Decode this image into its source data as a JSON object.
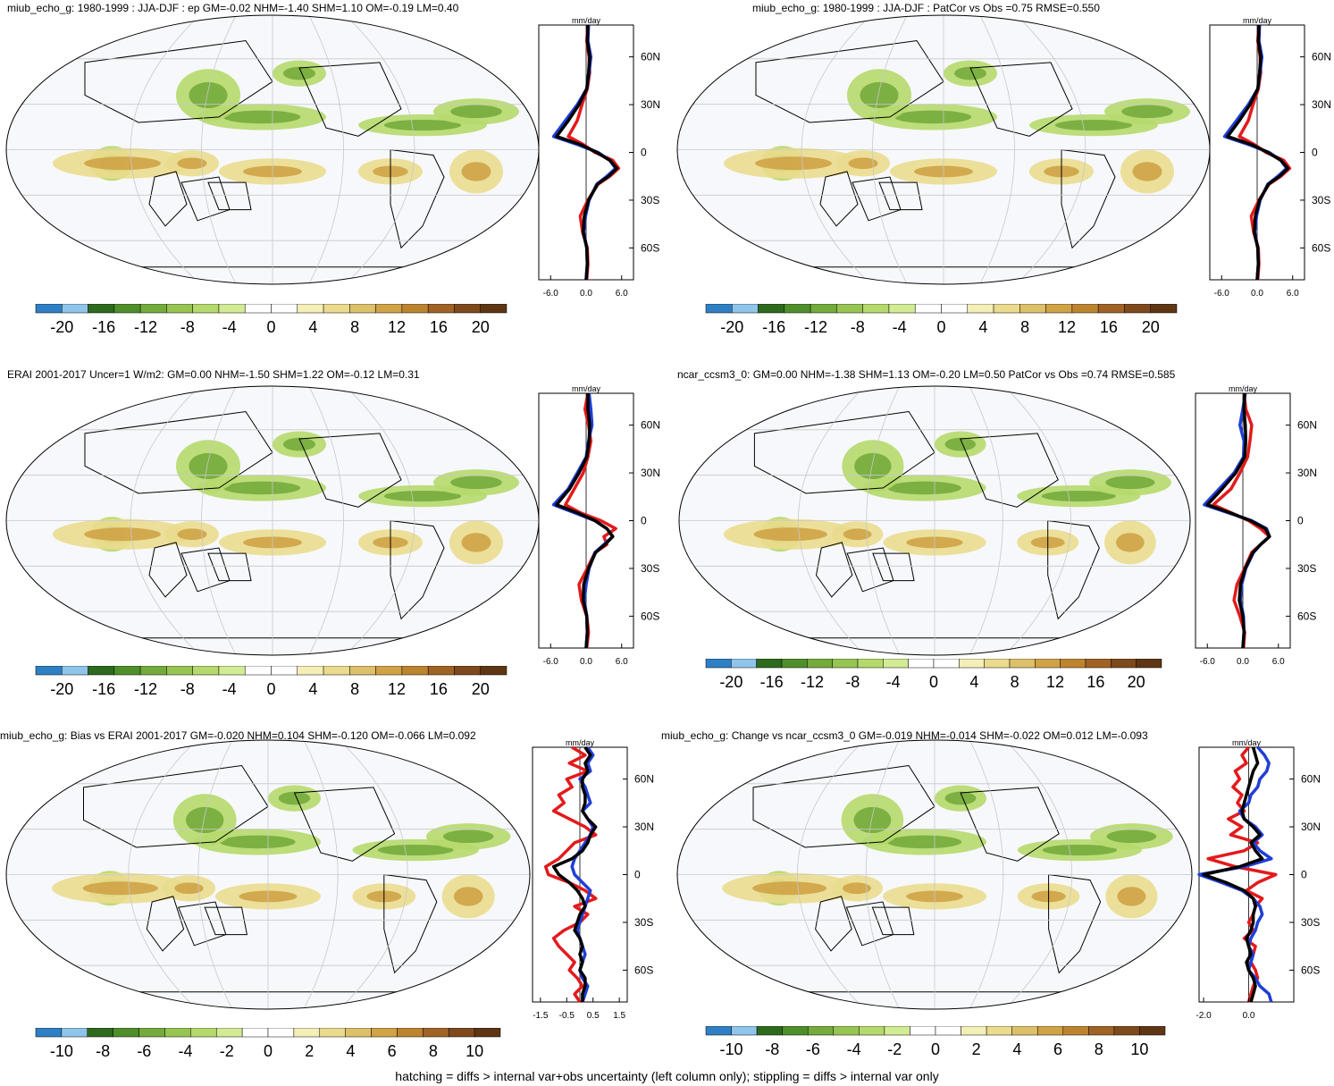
{
  "footer": "hatching = diffs > internal var+obs uncertainty (left column only); stippling = diffs > internal var only",
  "colors": {
    "cbar": [
      "#2f7fc4",
      "#8fc5ea",
      "#2e6a1e",
      "#4f8f2b",
      "#74ab3c",
      "#97c552",
      "#b5d96c",
      "#d2eb95",
      "#ffffff",
      "#ffffff",
      "#f4efb7",
      "#eadb8e",
      "#ddc06a",
      "#cfa346",
      "#bd8430",
      "#a06326",
      "#7e4a1d",
      "#5e3614"
    ],
    "obs": "#000000",
    "model": "#e31a1c",
    "other": "#1f3fd6"
  },
  "panels": [
    {
      "id": "p1",
      "title": "miub_echo_g: 1980-1999 : JJA-DJF : ep GM=-0.02 NHM=-1.40 SHM=1.10 OM=-0.19 LM=0.40",
      "unit": "mm/day",
      "cbar_labels": [
        "-20",
        "-16",
        "-12",
        "-8",
        "-4",
        "0",
        "4",
        "8",
        "12",
        "16",
        "20"
      ],
      "x_ticks": [
        "-6.0",
        "0.0",
        "6.0"
      ],
      "lat_ticks": [
        "60N",
        "30N",
        "0",
        "30S",
        "60S"
      ]
    },
    {
      "id": "p2",
      "title": "miub_echo_g: 1980-1999 : JJA-DJF : PatCor vs Obs =0.75 RMSE=0.550",
      "unit": "mm/day",
      "cbar_labels": [
        "-20",
        "-16",
        "-12",
        "-8",
        "-4",
        "0",
        "4",
        "8",
        "12",
        "16",
        "20"
      ],
      "x_ticks": [
        "-6.0",
        "0.0",
        "6.0"
      ],
      "lat_ticks": [
        "60N",
        "30N",
        "0",
        "30S",
        "60S"
      ]
    },
    {
      "id": "p3",
      "title": "ERAI 2001-2017 Uncer=1 W/m2: GM=0.00 NHM=-1.50 SHM=1.22 OM=-0.12 LM=0.31",
      "unit": "mm/day",
      "cbar_labels": [
        "-20",
        "-16",
        "-12",
        "-8",
        "-4",
        "0",
        "4",
        "8",
        "12",
        "16",
        "20"
      ],
      "x_ticks": [
        "-6.0",
        "0.0",
        "6.0"
      ],
      "lat_ticks": [
        "60N",
        "30N",
        "0",
        "30S",
        "60S"
      ]
    },
    {
      "id": "p4",
      "title": "ncar_ccsm3_0: GM=0.00 NHM=-1.38 SHM=1.13 OM=-0.20 LM=0.50 PatCor vs Obs =0.74 RMSE=0.585",
      "unit": "mm/day",
      "cbar_labels": [
        "-20",
        "-16",
        "-12",
        "-8",
        "-4",
        "0",
        "4",
        "8",
        "12",
        "16",
        "20"
      ],
      "x_ticks": [
        "-6.0",
        "0.0",
        "6.0"
      ],
      "lat_ticks": [
        "60N",
        "30N",
        "0",
        "30S",
        "60S"
      ]
    },
    {
      "id": "p5",
      "title": "miub_echo_g: Bias vs ERAI 2001-2017 GM=-0.020 NHM=0.104 SHM=-0.120 OM=-0.066 LM=0.092",
      "unit": "mm/day",
      "cbar_labels": [
        "-10",
        "-8",
        "-6",
        "-4",
        "-2",
        "0",
        "2",
        "4",
        "6",
        "8",
        "10"
      ],
      "x_ticks": [
        "-1.5",
        "-0.5",
        "0.5",
        "1.5"
      ],
      "lat_ticks": [
        "60N",
        "30N",
        "0",
        "30S",
        "60S"
      ]
    },
    {
      "id": "p6",
      "title": "miub_echo_g: Change vs ncar_ccsm3_0 GM=-0.019 NHM=-0.014 SHM=-0.022 OM=0.012 LM=-0.093",
      "unit": "mm/day",
      "cbar_labels": [
        "-10",
        "-8",
        "-6",
        "-4",
        "-2",
        "0",
        "2",
        "4",
        "6",
        "8",
        "10"
      ],
      "x_ticks": [
        "-2.0",
        "0.0"
      ],
      "lat_ticks": [
        "60N",
        "30N",
        "0",
        "30S",
        "60S"
      ]
    }
  ],
  "chart_data": [
    {
      "type": "line",
      "title": "miub_echo_g: 1980-1999 : JJA-DJF : ep GM=-0.02 NHM=-1.40 SHM=1.10 OM=-0.19 LM=0.40",
      "xlabel": "mm/day",
      "xlim": [
        -8,
        8
      ],
      "ylim": [
        -80,
        80
      ],
      "lat": [
        80,
        70,
        60,
        50,
        40,
        30,
        20,
        10,
        5,
        0,
        -5,
        -10,
        -15,
        -20,
        -30,
        -40,
        -50,
        -60,
        -70,
        -80
      ],
      "series": [
        {
          "color": "#e31a1c",
          "values": [
            0.3,
            0.1,
            0.5,
            0.6,
            0.2,
            -0.7,
            -1.5,
            -3.0,
            -0.5,
            1.5,
            4.5,
            5.5,
            4.0,
            2.0,
            0.3,
            -1.0,
            -0.6,
            0.2,
            0.3,
            0.1
          ]
        },
        {
          "color": "#1f3fd6",
          "values": [
            0.4,
            0.3,
            0.8,
            0.5,
            0.1,
            -1.5,
            -3.5,
            -5.5,
            -1.5,
            2.0,
            4.0,
            5.0,
            3.5,
            1.8,
            0.5,
            -0.1,
            -0.4,
            0.1,
            0.2,
            0.0
          ]
        },
        {
          "color": "#000000",
          "values": [
            0.3,
            0.2,
            0.6,
            0.4,
            0.1,
            -1.2,
            -3.0,
            -5.0,
            -1.0,
            1.8,
            4.0,
            5.2,
            3.8,
            1.9,
            0.4,
            -0.3,
            -0.5,
            0.1,
            0.2,
            0.0
          ]
        }
      ]
    },
    {
      "type": "line",
      "title": "miub_echo_g: 1980-1999 : JJA-DJF : PatCor vs Obs =0.75 RMSE=0.550",
      "xlabel": "mm/day",
      "xlim": [
        -8,
        8
      ],
      "ylim": [
        -80,
        80
      ],
      "lat": [
        80,
        70,
        60,
        50,
        40,
        30,
        20,
        10,
        5,
        0,
        -5,
        -10,
        -15,
        -20,
        -30,
        -40,
        -50,
        -60,
        -70,
        -80
      ],
      "series": [
        {
          "color": "#e31a1c",
          "values": [
            0.3,
            0.1,
            0.5,
            0.6,
            0.2,
            -0.7,
            -1.5,
            -3.0,
            -0.5,
            1.5,
            4.5,
            5.5,
            4.0,
            2.0,
            0.3,
            -1.0,
            -0.6,
            0.2,
            0.3,
            0.1
          ]
        },
        {
          "color": "#1f3fd6",
          "values": [
            0.4,
            0.3,
            0.8,
            0.5,
            0.1,
            -1.5,
            -3.5,
            -5.5,
            -1.5,
            2.0,
            4.0,
            5.0,
            3.5,
            1.8,
            0.5,
            -0.1,
            -0.4,
            0.1,
            0.2,
            0.0
          ]
        },
        {
          "color": "#000000",
          "values": [
            0.3,
            0.2,
            0.6,
            0.4,
            0.1,
            -1.2,
            -3.0,
            -5.0,
            -1.0,
            1.8,
            4.0,
            5.2,
            3.8,
            1.9,
            0.4,
            -0.3,
            -0.5,
            0.1,
            0.2,
            0.0
          ]
        }
      ]
    },
    {
      "type": "line",
      "title": "ERAI 2001-2017 Uncer=1 W/m2: GM=0.00 NHM=-1.50 SHM=1.22 OM=-0.12 LM=0.31",
      "xlabel": "mm/day",
      "xlim": [
        -8,
        8
      ],
      "ylim": [
        -80,
        80
      ],
      "lat": [
        80,
        70,
        60,
        50,
        40,
        30,
        20,
        10,
        5,
        0,
        -5,
        -10,
        -15,
        -20,
        -30,
        -40,
        -50,
        -60,
        -70,
        -80
      ],
      "series": [
        {
          "color": "#e31a1c",
          "values": [
            0.3,
            -0.2,
            0.4,
            0.8,
            0.3,
            -0.5,
            -2.0,
            -3.5,
            -1.0,
            2.5,
            5.0,
            3.0,
            3.5,
            1.5,
            0.2,
            -1.2,
            -0.8,
            0.1,
            0.4,
            0.1
          ]
        },
        {
          "color": "#1f3fd6",
          "values": [
            0.5,
            0.8,
            1.0,
            0.4,
            0.0,
            -1.5,
            -3.0,
            -5.5,
            -2.0,
            1.5,
            3.5,
            4.5,
            3.0,
            1.5,
            0.5,
            0.0,
            -0.3,
            0.1,
            0.2,
            0.0
          ]
        },
        {
          "color": "#000000",
          "values": [
            0.3,
            0.3,
            0.6,
            0.5,
            0.1,
            -1.2,
            -2.8,
            -5.0,
            -1.5,
            1.5,
            3.5,
            4.5,
            3.2,
            1.6,
            0.4,
            -0.4,
            -0.5,
            0.1,
            0.2,
            0.0
          ]
        }
      ]
    },
    {
      "type": "line",
      "title": "ncar_ccsm3_0: GM=0.00 NHM=-1.38 SHM=1.13 OM=-0.20 LM=0.50 PatCor vs Obs =0.74 RMSE=0.585",
      "xlabel": "mm/day",
      "xlim": [
        -8,
        8
      ],
      "ylim": [
        -80,
        80
      ],
      "lat": [
        80,
        70,
        60,
        50,
        40,
        30,
        20,
        10,
        5,
        0,
        -5,
        -10,
        -15,
        -20,
        -30,
        -40,
        -50,
        -60,
        -70,
        -80
      ],
      "series": [
        {
          "color": "#e31a1c",
          "values": [
            0.2,
            0.5,
            1.5,
            1.2,
            0.8,
            -0.5,
            -2.0,
            -5.0,
            -2.0,
            1.0,
            3.0,
            4.5,
            3.0,
            1.5,
            0.3,
            -1.0,
            -1.5,
            -0.5,
            0.3,
            0.1
          ]
        },
        {
          "color": "#1f3fd6",
          "values": [
            0.4,
            0.0,
            -0.5,
            0.2,
            0.1,
            -1.5,
            -4.0,
            -6.5,
            -2.5,
            1.5,
            4.0,
            4.5,
            3.0,
            1.8,
            0.5,
            -0.2,
            -0.4,
            0.1,
            0.2,
            0.0
          ]
        },
        {
          "color": "#000000",
          "values": [
            0.3,
            0.2,
            0.4,
            0.5,
            0.3,
            -1.2,
            -3.5,
            -6.0,
            -2.2,
            1.3,
            3.8,
            4.5,
            3.0,
            1.7,
            0.4,
            -0.4,
            -0.6,
            0.0,
            0.2,
            0.0
          ]
        }
      ]
    },
    {
      "type": "line",
      "title": "miub_echo_g: Bias vs ERAI 2001-2017 GM=-0.020 NHM=0.104 SHM=-0.120 OM=-0.066 LM=0.092",
      "xlabel": "mm/day",
      "xlim": [
        -1.8,
        1.8
      ],
      "ylim": [
        -80,
        80
      ],
      "lat": [
        80,
        75,
        70,
        65,
        60,
        55,
        50,
        45,
        40,
        35,
        30,
        25,
        20,
        15,
        10,
        5,
        0,
        -5,
        -10,
        -15,
        -20,
        -25,
        -30,
        -35,
        -40,
        -45,
        -50,
        -55,
        -60,
        -65,
        -70,
        -75,
        -80
      ],
      "series": [
        {
          "color": "#e31a1c",
          "values": [
            -0.3,
            0.2,
            -0.4,
            0.3,
            -0.5,
            -0.3,
            -0.8,
            -0.6,
            -1.0,
            -0.4,
            0.2,
            0.6,
            -0.2,
            -0.5,
            -0.8,
            -1.3,
            -1.2,
            -0.4,
            0.2,
            0.6,
            -0.2,
            0.3,
            0.0,
            -0.6,
            -1.0,
            -0.8,
            -0.5,
            -0.2,
            -0.4,
            -0.1,
            0.1,
            -0.2,
            0.0
          ]
        },
        {
          "color": "#1f3fd6",
          "values": [
            0.3,
            0.5,
            0.3,
            0.4,
            0.0,
            0.2,
            0.3,
            0.4,
            0.1,
            0.3,
            0.5,
            0.4,
            0.2,
            0.0,
            -0.2,
            -0.3,
            -0.2,
            0.1,
            0.4,
            0.3,
            0.2,
            0.1,
            0.0,
            -0.1,
            0.0,
            0.1,
            0.2,
            0.1,
            0.0,
            0.1,
            0.3,
            0.2,
            0.1
          ]
        },
        {
          "color": "#000000",
          "values": [
            0.2,
            0.4,
            0.2,
            0.3,
            0.1,
            0.1,
            0.2,
            0.2,
            0.1,
            0.3,
            0.6,
            0.4,
            0.3,
            0.1,
            -0.3,
            -1.0,
            -0.8,
            -0.4,
            -0.1,
            0.1,
            0.2,
            0.0,
            -0.1,
            -0.2,
            0.0,
            0.1,
            0.0,
            0.1,
            0.0,
            0.2,
            0.2,
            0.1,
            0.1
          ]
        }
      ]
    },
    {
      "type": "line",
      "title": "miub_echo_g: Change vs ncar_ccsm3_0 GM=-0.019 NHM=-0.014 SHM=-0.022 OM=0.012 LM=-0.093",
      "xlabel": "mm/day",
      "xlim": [
        -2.2,
        2.0
      ],
      "ylim": [
        -80,
        80
      ],
      "lat": [
        80,
        75,
        70,
        65,
        60,
        55,
        50,
        45,
        40,
        35,
        30,
        25,
        20,
        15,
        10,
        5,
        0,
        -5,
        -10,
        -15,
        -20,
        -25,
        -30,
        -35,
        -40,
        -45,
        -50,
        -55,
        -60,
        -65,
        -70,
        -75,
        -80
      ],
      "series": [
        {
          "color": "#e31a1c",
          "values": [
            0.0,
            -0.3,
            -0.1,
            -0.6,
            -0.4,
            -0.7,
            -0.3,
            -0.5,
            -0.2,
            -0.9,
            -0.3,
            -0.8,
            0.4,
            -0.2,
            -1.8,
            -0.6,
            1.2,
            0.4,
            -0.1,
            0.6,
            0.3,
            0.2,
            0.0,
            0.2,
            -0.2,
            0.3,
            0.2,
            0.1,
            0.3,
            0.4,
            0.2,
            0.1,
            0.0
          ]
        },
        {
          "color": "#1f3fd6",
          "values": [
            0.4,
            0.7,
            0.9,
            0.8,
            0.5,
            0.4,
            0.1,
            0.0,
            -0.4,
            -0.2,
            0.3,
            0.6,
            0.2,
            0.5,
            1.0,
            -0.2,
            -2.2,
            -1.2,
            -0.3,
            0.2,
            0.5,
            0.6,
            0.4,
            0.3,
            0.1,
            0.0,
            0.2,
            0.1,
            0.0,
            0.3,
            0.5,
            0.9,
            1.0
          ]
        },
        {
          "color": "#000000",
          "values": [
            0.2,
            0.3,
            0.4,
            0.2,
            0.1,
            0.0,
            -0.1,
            -0.2,
            -0.3,
            -0.2,
            0.2,
            0.5,
            0.1,
            0.3,
            0.6,
            -0.4,
            -2.0,
            -1.0,
            -0.2,
            0.2,
            0.3,
            0.2,
            0.2,
            0.1,
            -0.1,
            0.0,
            0.1,
            -0.1,
            0.0,
            0.2,
            0.3,
            0.2,
            0.1
          ]
        }
      ]
    }
  ]
}
